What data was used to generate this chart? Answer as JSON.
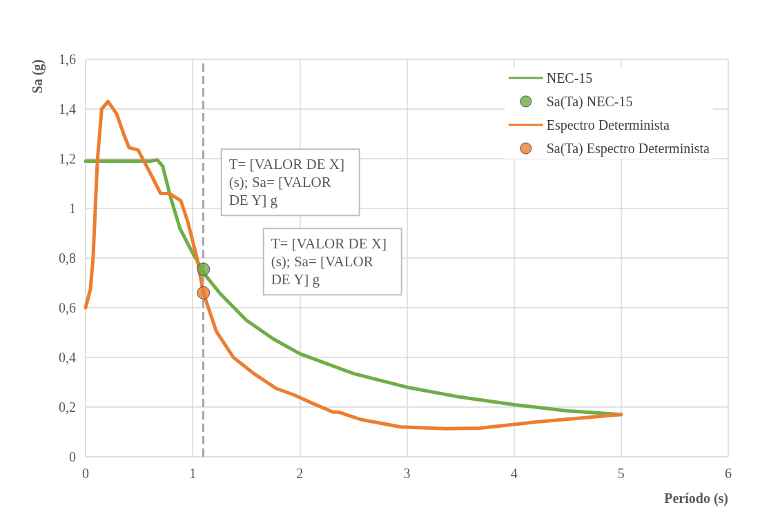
{
  "chart_data": {
    "type": "line",
    "xlabel": "Período (s)",
    "ylabel": "Sa (g)",
    "xlim": [
      0,
      6
    ],
    "xticks": [
      0,
      1,
      2,
      3,
      4,
      5,
      6
    ],
    "ylim": [
      0,
      1.6
    ],
    "yticks": [
      0,
      {
        "value": 0.2,
        "label": "0,2"
      },
      {
        "value": 0.4,
        "label": "0,4"
      },
      {
        "value": 0.6,
        "label": "0,6"
      },
      {
        "value": 0.8,
        "label": "0,8"
      },
      1,
      {
        "value": 1.2,
        "label": "1,2"
      },
      {
        "value": 1.4,
        "label": "1,4"
      },
      {
        "value": 1.6,
        "label": "1,6"
      }
    ],
    "grid": true,
    "legend": "top right",
    "series": [
      {
        "name": "NEC-15",
        "color": "#70ad47",
        "marker": "none",
        "x": [
          0,
          0.3,
          0.6,
          0.67,
          0.72,
          0.79,
          0.88,
          1.0,
          1.12,
          1.25,
          1.5,
          1.75,
          2.0,
          2.5,
          3.0,
          3.5,
          4.0,
          4.5,
          5.0
        ],
        "values": [
          1.19,
          1.19,
          1.19,
          1.195,
          1.17,
          1.05,
          0.92,
          0.82,
          0.73,
          0.66,
          0.55,
          0.475,
          0.415,
          0.335,
          0.28,
          0.24,
          0.21,
          0.185,
          0.17
        ]
      },
      {
        "name": "Sa(Ta) NEC-15",
        "type": "scatter",
        "color": "#70ad47",
        "marker": "circle",
        "x": [
          1.1
        ],
        "values": [
          0.755
        ]
      },
      {
        "name": "Espectro Determinista",
        "color": "#ed7d31",
        "marker": "none",
        "x": [
          0,
          0.045,
          0.07,
          0.11,
          0.15,
          0.21,
          0.29,
          0.355,
          0.405,
          0.49,
          0.6,
          0.7,
          0.785,
          0.89,
          0.955,
          1.04,
          1.1,
          1.22,
          1.38,
          1.57,
          1.78,
          1.94,
          2.12,
          2.31,
          2.36,
          2.57,
          2.94,
          3.36,
          3.68,
          4.21,
          5.0
        ],
        "values": [
          0.6,
          0.675,
          0.8,
          1.19,
          1.4,
          1.43,
          1.38,
          1.3,
          1.245,
          1.235,
          1.145,
          1.06,
          1.06,
          1.03,
          0.945,
          0.8,
          0.66,
          0.505,
          0.4,
          0.335,
          0.275,
          0.25,
          0.215,
          0.18,
          0.18,
          0.15,
          0.12,
          0.113,
          0.115,
          0.14,
          0.17
        ]
      },
      {
        "name": "Sa(Ta) Espectro Determinista",
        "type": "scatter",
        "color": "#ed7d31",
        "marker": "circle",
        "x": [
          1.1
        ],
        "values": [
          0.66
        ]
      }
    ],
    "ref_lines": [
      {
        "axis": "x",
        "value": 1.1,
        "label": null,
        "color": "#a6a6a6",
        "line_style": "dashed"
      }
    ],
    "annotations": [
      "T= [VALOR DE X] (s); Sa= [VALOR DE Y] g",
      "T= [VALOR DE X] (s); Sa= [VALOR DE Y] g"
    ]
  }
}
